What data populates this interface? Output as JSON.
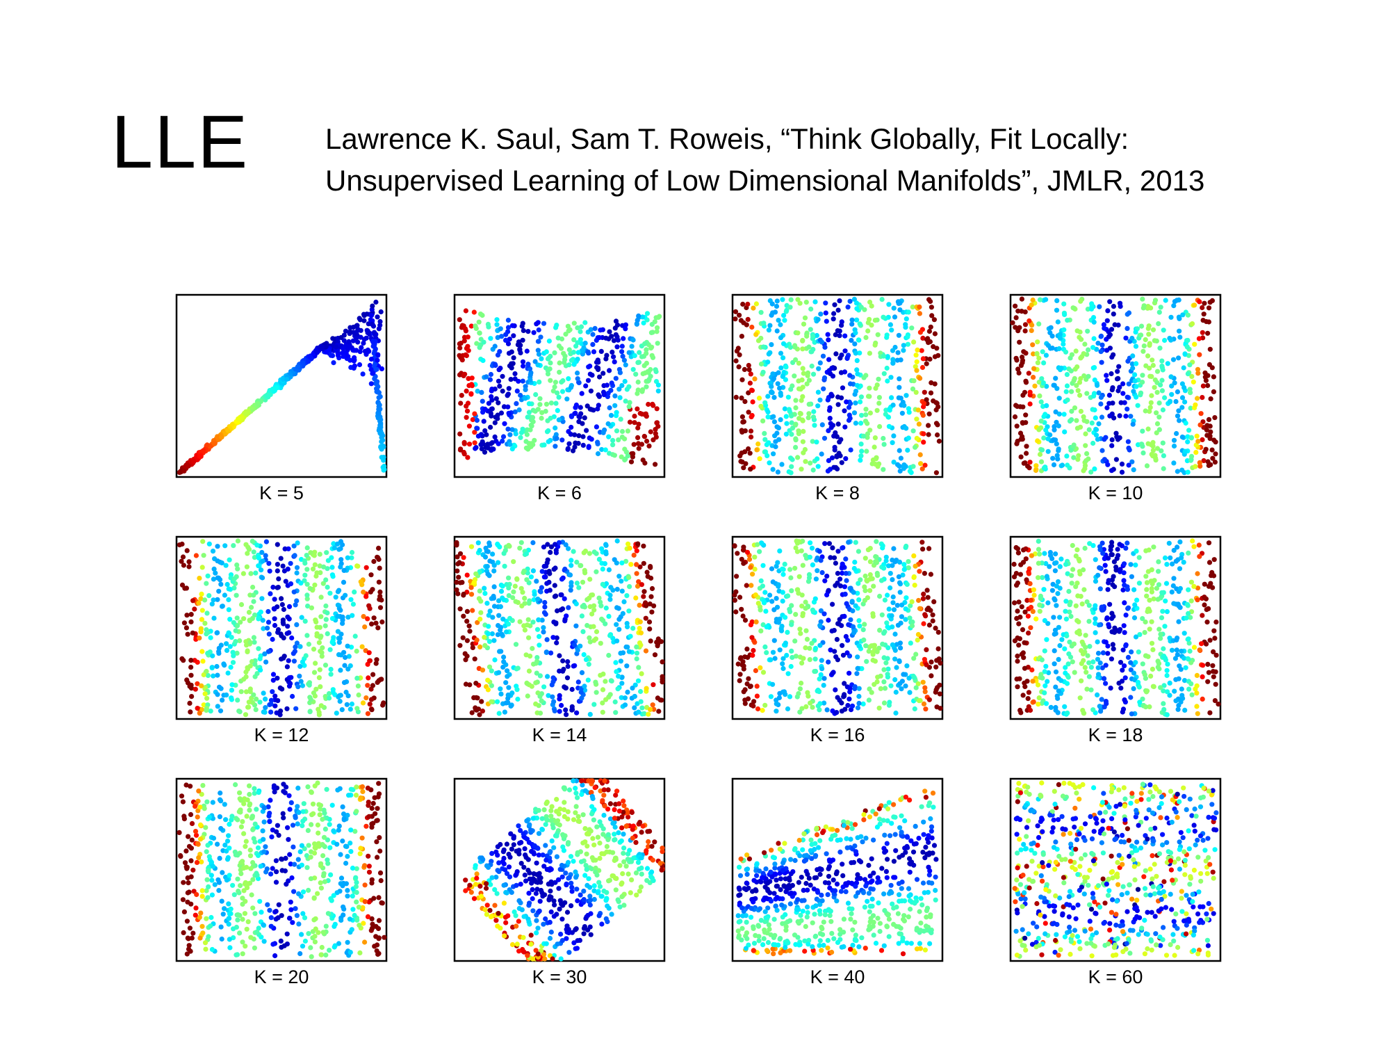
{
  "slide": {
    "title": "LLE",
    "citation_line1": "Lawrence K. Saul, Sam T. Roweis, “Think Globally, Fit Locally:",
    "citation_line2": "Unsupervised Learning of Low Dimensional Manifolds”, JMLR, 2013"
  },
  "figure": {
    "colormap": [
      "#00007f",
      "#0000ff",
      "#007fff",
      "#00ffff",
      "#7fff7f",
      "#ffff00",
      "#ff7f00",
      "#ff0000",
      "#7f0000"
    ],
    "frame_color": "#000000",
    "panels": [
      {
        "label": "K = 5",
        "k": 5,
        "shape": "collapsed-curve"
      },
      {
        "label": "K = 6",
        "k": 6,
        "shape": "warped-sheet"
      },
      {
        "label": "K = 8",
        "k": 8,
        "shape": "vertical-bands"
      },
      {
        "label": "K = 10",
        "k": 10,
        "shape": "vertical-bands"
      },
      {
        "label": "K = 12",
        "k": 12,
        "shape": "vertical-bands"
      },
      {
        "label": "K = 14",
        "k": 14,
        "shape": "tilted-bands"
      },
      {
        "label": "K = 16",
        "k": 16,
        "shape": "tilted-bands"
      },
      {
        "label": "K = 18",
        "k": 18,
        "shape": "vertical-bands"
      },
      {
        "label": "K = 20",
        "k": 20,
        "shape": "vertical-bands"
      },
      {
        "label": "K = 30",
        "k": 30,
        "shape": "rotated-sheet"
      },
      {
        "label": "K = 40",
        "k": 40,
        "shape": "folded-wedge"
      },
      {
        "label": "K = 60",
        "k": 60,
        "shape": "horizontal-mixed"
      }
    ]
  }
}
